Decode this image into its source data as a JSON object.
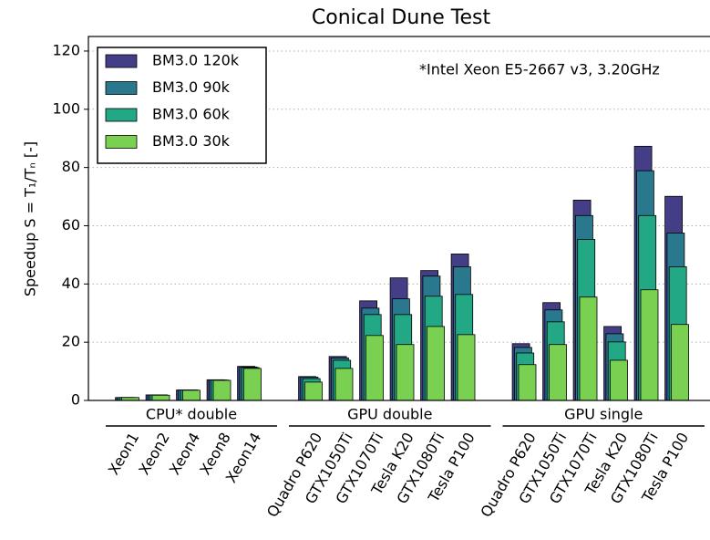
{
  "chart_data": {
    "type": "bar",
    "title": "Conical Dune Test",
    "ylabel": "Speedup    S = T₁/Tₙ [-]",
    "annotation": "*Intel Xeon E5-2667 v3, 3.20GHz",
    "categories": [
      "Xeon1",
      "Xeon2",
      "Xeon4",
      "Xeon8",
      "Xeon14",
      null,
      "Quadro P620",
      "GTX1050Ti",
      "GTX1070Ti",
      "Tesla K20",
      "GTX1080Ti",
      "Tesla P100",
      null,
      "Quadro P620",
      "GTX1050Ti",
      "GTX1070Ti",
      "Tesla K20",
      "GTX1080Ti",
      "Tesla P100"
    ],
    "groups": [
      "CPU* double",
      "GPU double",
      "GPU single"
    ],
    "series": [
      {
        "name": "BM3.0 120k",
        "color": "#433e85",
        "values": [
          1.0,
          1.9,
          3.6,
          7.1,
          11.7,
          null,
          8.2,
          15.1,
          34.2,
          42.1,
          44.6,
          50.3,
          null,
          19.5,
          33.6,
          68.8,
          25.4,
          87.3,
          70.1
        ]
      },
      {
        "name": "BM3.0 90k",
        "color": "#2a788e",
        "values": [
          1.0,
          1.9,
          3.6,
          7.0,
          11.5,
          null,
          8.0,
          14.6,
          31.7,
          34.9,
          42.7,
          45.9,
          null,
          18.2,
          31.1,
          63.5,
          22.9,
          78.9,
          57.5
        ]
      },
      {
        "name": "BM3.0 60k",
        "color": "#22a884",
        "values": [
          1.0,
          1.9,
          3.6,
          7.0,
          11.3,
          null,
          7.5,
          13.8,
          29.5,
          29.5,
          35.8,
          36.4,
          null,
          16.3,
          27.0,
          55.3,
          20.1,
          63.5,
          45.9
        ]
      },
      {
        "name": "BM3.0 30k",
        "color": "#7ad151",
        "values": [
          1.0,
          1.8,
          3.5,
          6.9,
          11.0,
          null,
          6.3,
          11.0,
          22.3,
          19.2,
          25.4,
          22.6,
          null,
          12.3,
          19.2,
          35.5,
          13.8,
          38.0,
          26.1
        ]
      }
    ],
    "ylim": [
      0,
      125
    ],
    "yticks": [
      0,
      20,
      40,
      60,
      80,
      100,
      120
    ],
    "grid": true,
    "legend": "upper left"
  }
}
